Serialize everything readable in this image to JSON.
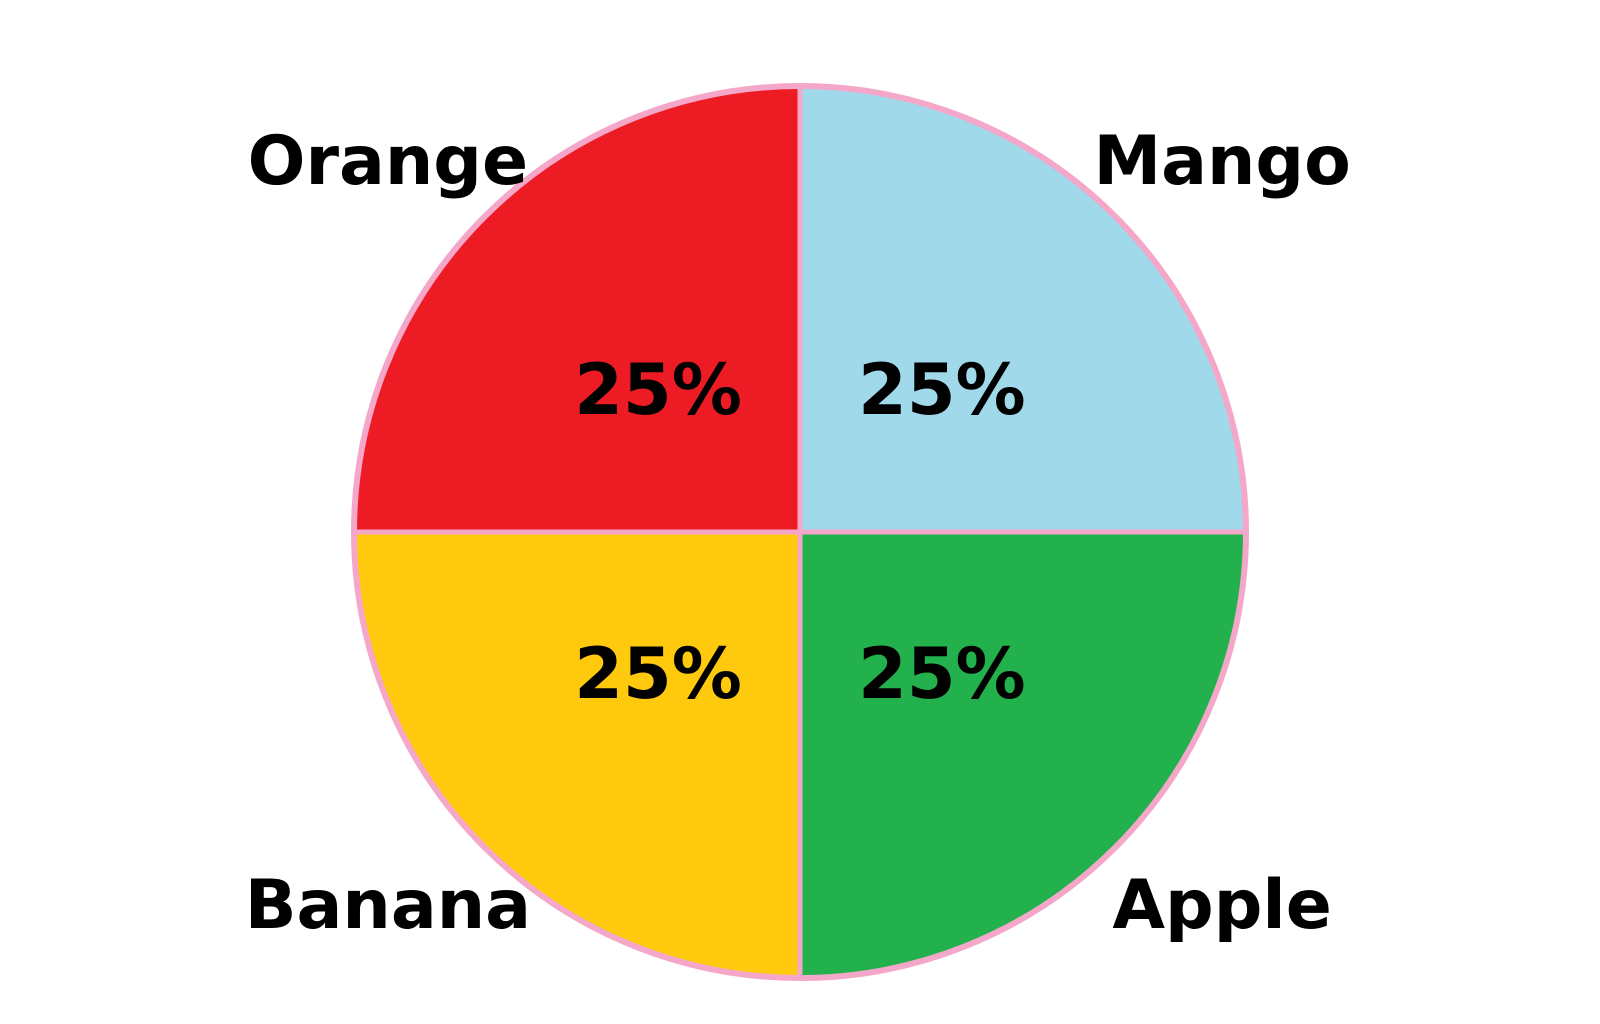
{
  "chart_data": {
    "type": "pie",
    "title": "",
    "categories": [
      "Mango",
      "Apple",
      "Banana",
      "Orange"
    ],
    "values": [
      25,
      25,
      25,
      25
    ],
    "value_labels": [
      "25%",
      "25%",
      "25%",
      "25%"
    ],
    "colors": [
      "#9fd9ea",
      "#22b14c",
      "#ffc90e",
      "#ed1c24"
    ],
    "outline_color": "#f4a7c9",
    "legend": "none"
  }
}
